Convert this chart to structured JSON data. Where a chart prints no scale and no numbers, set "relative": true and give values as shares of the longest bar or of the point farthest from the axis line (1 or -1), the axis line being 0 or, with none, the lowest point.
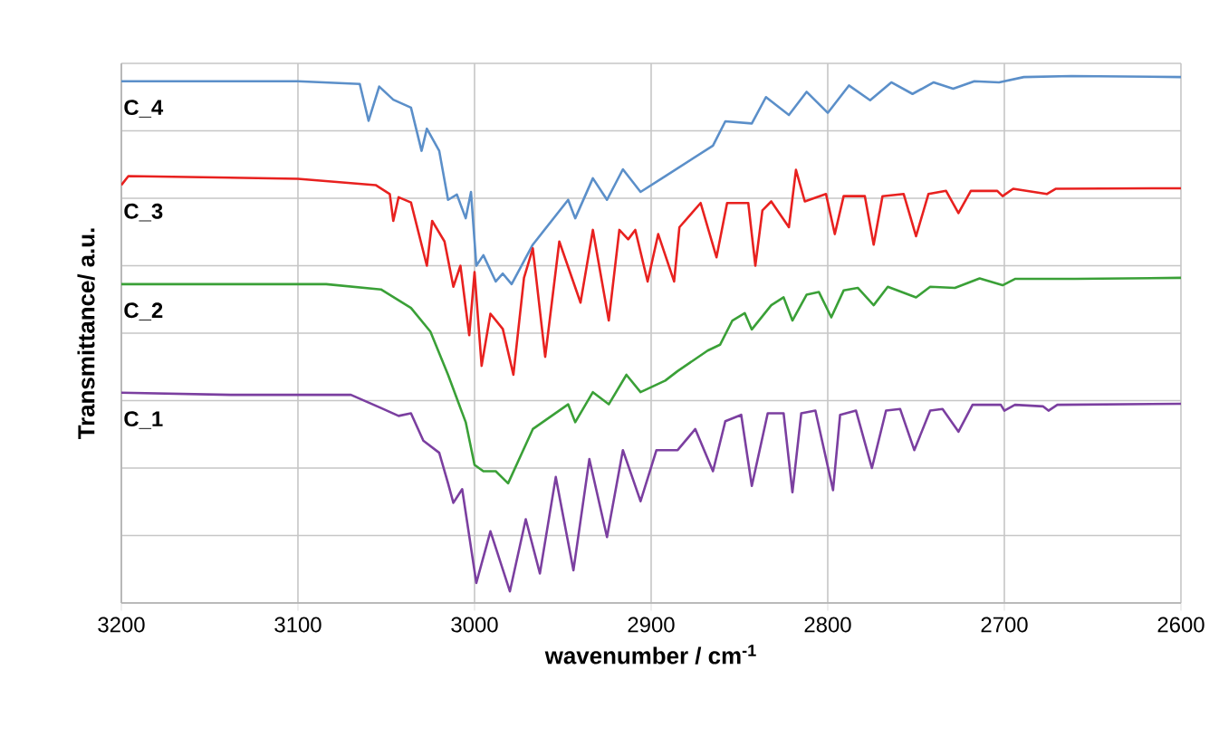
{
  "chart_data": {
    "type": "line",
    "relative": true,
    "xlabel": "wavenumber  / cm$^{-1}$",
    "ylabel": "Transmittance/ a.u.",
    "xlim": [
      3200,
      2600
    ],
    "xticks": [
      3200,
      3100,
      3000,
      2900,
      2800,
      2700,
      2600
    ],
    "grid": true,
    "legend": false,
    "marker": "none",
    "line_style": "solid",
    "series": [
      {
        "name": "C_4",
        "color": "#5b8fc9",
        "x": [
          3200,
          3100,
          3065,
          3060,
          3054,
          3046,
          3036,
          3030,
          3027,
          3020,
          3015,
          3010,
          3005,
          3002,
          2999,
          2995,
          2988,
          2984,
          2979,
          2967,
          2947,
          2943,
          2933,
          2925,
          2916,
          2906,
          2892,
          2865,
          2858,
          2843,
          2835,
          2822,
          2812,
          2800,
          2788,
          2776,
          2764,
          2752,
          2740,
          2729,
          2717,
          2703,
          2689,
          2662,
          2600
        ],
        "values": [
          0.99,
          0.99,
          0.985,
          0.915,
          0.98,
          0.955,
          0.94,
          0.858,
          0.9,
          0.858,
          0.765,
          0.775,
          0.73,
          0.78,
          0.64,
          0.66,
          0.61,
          0.625,
          0.605,
          0.68,
          0.765,
          0.73,
          0.806,
          0.765,
          0.823,
          0.78,
          0.81,
          0.868,
          0.914,
          0.91,
          0.96,
          0.926,
          0.97,
          0.93,
          0.982,
          0.954,
          0.988,
          0.966,
          0.988,
          0.976,
          0.99,
          0.988,
          0.998,
          1.0,
          0.998
        ]
      },
      {
        "name": "C_3",
        "color": "#e8211f",
        "x": [
          3200,
          3196,
          3100,
          3056,
          3048,
          3046,
          3043,
          3036,
          3027,
          3024,
          3017,
          3012,
          3008,
          3003,
          3000,
          2996,
          2991,
          2984,
          2978,
          2972,
          2967,
          2960,
          2952,
          2940,
          2933,
          2924,
          2918,
          2913,
          2909,
          2902,
          2896,
          2887,
          2884,
          2872,
          2863,
          2857,
          2845,
          2841,
          2837,
          2832,
          2822,
          2818,
          2813,
          2801,
          2796,
          2791,
          2779,
          2774,
          2769,
          2757,
          2750,
          2743,
          2733,
          2726,
          2719,
          2704,
          2701,
          2695,
          2676,
          2671,
          2600
        ],
        "values": [
          0.793,
          0.81,
          0.805,
          0.793,
          0.776,
          0.725,
          0.77,
          0.76,
          0.64,
          0.725,
          0.686,
          0.6,
          0.64,
          0.508,
          0.628,
          0.45,
          0.549,
          0.52,
          0.433,
          0.617,
          0.673,
          0.467,
          0.686,
          0.57,
          0.708,
          0.536,
          0.708,
          0.69,
          0.708,
          0.61,
          0.7,
          0.61,
          0.713,
          0.759,
          0.656,
          0.759,
          0.759,
          0.64,
          0.745,
          0.762,
          0.713,
          0.822,
          0.762,
          0.776,
          0.7,
          0.772,
          0.772,
          0.68,
          0.772,
          0.776,
          0.696,
          0.776,
          0.782,
          0.74,
          0.782,
          0.782,
          0.772,
          0.786,
          0.776,
          0.786,
          0.787
        ]
      },
      {
        "name": "C_2",
        "color": "#3aa037",
        "x": [
          3200,
          3084,
          3053,
          3036,
          3025,
          3015,
          3005,
          3000,
          2995,
          2988,
          2981,
          2967,
          2947,
          2943,
          2933,
          2924,
          2914,
          2906,
          2892,
          2885,
          2868,
          2861,
          2854,
          2847,
          2843,
          2832,
          2825,
          2820,
          2812,
          2805,
          2798,
          2791,
          2783,
          2774,
          2766,
          2750,
          2742,
          2728,
          2714,
          2701,
          2694,
          2660,
          2600
        ],
        "values": [
          0.605,
          0.605,
          0.595,
          0.56,
          0.515,
          0.433,
          0.343,
          0.262,
          0.25,
          0.25,
          0.227,
          0.33,
          0.377,
          0.343,
          0.4,
          0.377,
          0.433,
          0.4,
          0.422,
          0.44,
          0.479,
          0.49,
          0.536,
          0.55,
          0.519,
          0.565,
          0.58,
          0.536,
          0.585,
          0.59,
          0.542,
          0.593,
          0.598,
          0.565,
          0.6,
          0.58,
          0.6,
          0.598,
          0.616,
          0.603,
          0.615,
          0.615,
          0.617
        ]
      },
      {
        "name": "C_1",
        "color": "#7b3fa0",
        "x": [
          3200,
          3138,
          3070,
          3053,
          3043,
          3036,
          3029,
          3020,
          3015,
          3012,
          3007,
          2999,
          2991,
          2980,
          2971,
          2963,
          2954,
          2944,
          2935,
          2925,
          2916,
          2906,
          2897,
          2885,
          2875,
          2865,
          2858,
          2849,
          2843,
          2834,
          2825,
          2820,
          2815,
          2807,
          2797,
          2793,
          2784,
          2775,
          2767,
          2759,
          2751,
          2742,
          2735,
          2726,
          2718,
          2702,
          2700,
          2694,
          2678,
          2675,
          2670,
          2600
        ],
        "values": [
          0.399,
          0.395,
          0.395,
          0.37,
          0.355,
          0.36,
          0.308,
          0.285,
          0.227,
          0.19,
          0.216,
          0.038,
          0.136,
          0.022,
          0.159,
          0.056,
          0.239,
          0.062,
          0.273,
          0.125,
          0.29,
          0.193,
          0.29,
          0.29,
          0.33,
          0.25,
          0.345,
          0.357,
          0.222,
          0.36,
          0.36,
          0.21,
          0.36,
          0.365,
          0.214,
          0.357,
          0.365,
          0.256,
          0.365,
          0.368,
          0.29,
          0.365,
          0.368,
          0.325,
          0.376,
          0.376,
          0.365,
          0.376,
          0.373,
          0.365,
          0.376,
          0.378
        ]
      }
    ]
  }
}
